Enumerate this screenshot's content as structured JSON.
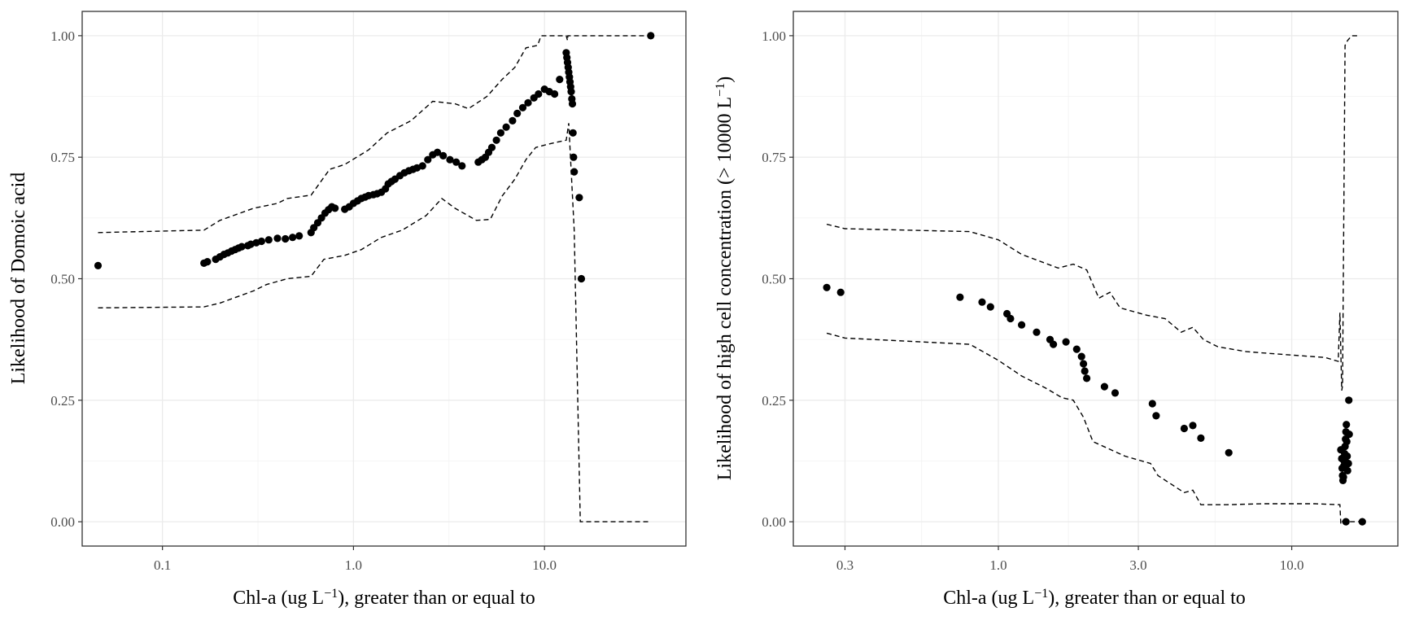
{
  "chart_data": [
    {
      "type": "scatter",
      "title": "",
      "xlabel": {
        "before": "Chl-a (ug L",
        "sup": "−1",
        "after": "), greater than or equal to"
      },
      "ylabel": {
        "before": "Likelihood of Domoic acid",
        "sup": "",
        "after": ""
      },
      "x_scale": "log10",
      "xlim": [
        0.038,
        55
      ],
      "ylim": [
        -0.05,
        1.05
      ],
      "x_ticks": [
        0.1,
        1.0,
        10.0
      ],
      "x_tick_labels": [
        "0.1",
        "1.0",
        "10.0"
      ],
      "y_ticks": [
        0,
        0.25,
        0.5,
        0.75,
        1.0
      ],
      "y_tick_labels": [
        "0.00",
        "0.25",
        "0.50",
        "0.75",
        "1.00"
      ],
      "grid": true,
      "legend": "none",
      "points": {
        "x": [
          0.046,
          0.165,
          0.172,
          0.19,
          0.2,
          0.21,
          0.22,
          0.23,
          0.24,
          0.25,
          0.26,
          0.28,
          0.29,
          0.31,
          0.33,
          0.36,
          0.4,
          0.44,
          0.48,
          0.52,
          0.6,
          0.62,
          0.65,
          0.68,
          0.71,
          0.74,
          0.77,
          0.8,
          0.9,
          0.95,
          1.0,
          1.05,
          1.1,
          1.15,
          1.2,
          1.27,
          1.33,
          1.4,
          1.47,
          1.52,
          1.58,
          1.65,
          1.75,
          1.85,
          1.95,
          2.05,
          2.15,
          2.3,
          2.45,
          2.6,
          2.75,
          2.95,
          3.2,
          3.45,
          3.7,
          4.5,
          4.7,
          4.9,
          5.1,
          5.3,
          5.6,
          5.9,
          6.3,
          6.8,
          7.2,
          7.7,
          8.2,
          8.8,
          9.3,
          10.0,
          10.6,
          11.3,
          12.0,
          13.0,
          13.1,
          13.2,
          13.3,
          13.4,
          13.5,
          13.6,
          13.7,
          13.8,
          13.9,
          14.0,
          14.1,
          14.2,
          14.3,
          15.2,
          15.6,
          36.0
        ],
        "y": [
          0.527,
          0.532,
          0.535,
          0.54,
          0.545,
          0.55,
          0.553,
          0.557,
          0.56,
          0.563,
          0.566,
          0.568,
          0.571,
          0.574,
          0.577,
          0.58,
          0.583,
          0.582,
          0.585,
          0.588,
          0.595,
          0.605,
          0.615,
          0.625,
          0.635,
          0.642,
          0.648,
          0.645,
          0.643,
          0.648,
          0.655,
          0.66,
          0.665,
          0.668,
          0.671,
          0.673,
          0.675,
          0.678,
          0.685,
          0.695,
          0.7,
          0.705,
          0.712,
          0.718,
          0.722,
          0.725,
          0.728,
          0.732,
          0.745,
          0.755,
          0.76,
          0.753,
          0.745,
          0.74,
          0.732,
          0.74,
          0.745,
          0.75,
          0.76,
          0.77,
          0.785,
          0.8,
          0.812,
          0.825,
          0.84,
          0.852,
          0.862,
          0.872,
          0.88,
          0.89,
          0.885,
          0.88,
          0.91,
          0.965,
          0.955,
          0.945,
          0.935,
          0.925,
          0.915,
          0.905,
          0.895,
          0.885,
          0.87,
          0.86,
          0.8,
          0.75,
          0.72,
          0.667,
          0.5,
          1.0
        ]
      },
      "ci_upper": {
        "x": [
          0.046,
          0.165,
          0.2,
          0.3,
          0.4,
          0.45,
          0.6,
          0.75,
          0.9,
          1.2,
          1.5,
          2.0,
          2.6,
          3.4,
          4.0,
          5.0,
          6.0,
          7.0,
          8.0,
          9.2,
          9.6,
          12.0,
          13.0,
          13.2,
          13.25,
          13.5,
          14.2,
          36.0
        ],
        "y": [
          0.595,
          0.6,
          0.62,
          0.645,
          0.655,
          0.665,
          0.672,
          0.725,
          0.735,
          0.765,
          0.8,
          0.825,
          0.865,
          0.86,
          0.85,
          0.875,
          0.91,
          0.935,
          0.975,
          0.98,
          1.0,
          1.0,
          1.0,
          0.99,
          1.0,
          1.0,
          1.0,
          1.0
        ]
      },
      "ci_lower": {
        "x": [
          0.046,
          0.165,
          0.2,
          0.3,
          0.35,
          0.45,
          0.6,
          0.7,
          0.9,
          1.1,
          1.4,
          1.8,
          2.4,
          2.9,
          3.4,
          4.4,
          5.2,
          6.0,
          7.0,
          8.0,
          9.0,
          10.0,
          11.3,
          13.0,
          13.4,
          14.3,
          15.4,
          36.0
        ],
        "y": [
          0.44,
          0.442,
          0.45,
          0.475,
          0.488,
          0.5,
          0.505,
          0.54,
          0.548,
          0.56,
          0.585,
          0.6,
          0.63,
          0.665,
          0.645,
          0.62,
          0.622,
          0.67,
          0.705,
          0.745,
          0.77,
          0.775,
          0.78,
          0.785,
          0.82,
          0.6,
          0.0,
          0.0
        ]
      }
    },
    {
      "type": "scatter",
      "title": "",
      "xlabel": {
        "before": "Chl-a (ug L",
        "sup": "−1",
        "after": "), greater than or equal to"
      },
      "ylabel": {
        "before": "Likelihood of high cell concentration (> 10000  L",
        "sup": "−1",
        "after": ")"
      },
      "x_scale": "log10",
      "xlim": [
        0.2,
        23
      ],
      "ylim": [
        -0.05,
        1.05
      ],
      "x_ticks": [
        0.3,
        1.0,
        3.0,
        10.0
      ],
      "x_tick_labels": [
        "0.3",
        "1.0",
        "3.0",
        "10.0"
      ],
      "y_ticks": [
        0,
        0.25,
        0.5,
        0.75,
        1.0
      ],
      "y_tick_labels": [
        "0.00",
        "0.25",
        "0.50",
        "0.75",
        "1.00"
      ],
      "grid": true,
      "legend": "none",
      "points": {
        "x": [
          0.26,
          0.29,
          0.74,
          0.88,
          0.94,
          1.07,
          1.1,
          1.2,
          1.35,
          1.5,
          1.54,
          1.7,
          1.85,
          1.92,
          1.95,
          1.97,
          2.0,
          2.3,
          2.5,
          3.35,
          3.45,
          4.3,
          4.6,
          4.9,
          6.1,
          14.7,
          14.8,
          14.85,
          14.9,
          14.95,
          15.0,
          15.05,
          15.1,
          15.15,
          15.2,
          15.25,
          15.3,
          15.35,
          15.4,
          15.45,
          15.5,
          15.6,
          15.65,
          15.7,
          15.3,
          17.4
        ],
        "y": [
          0.482,
          0.472,
          0.462,
          0.452,
          0.442,
          0.428,
          0.418,
          0.405,
          0.39,
          0.375,
          0.365,
          0.37,
          0.355,
          0.34,
          0.325,
          0.31,
          0.295,
          0.278,
          0.265,
          0.243,
          0.218,
          0.192,
          0.198,
          0.172,
          0.142,
          0.148,
          0.13,
          0.11,
          0.095,
          0.085,
          0.092,
          0.115,
          0.125,
          0.14,
          0.155,
          0.17,
          0.185,
          0.2,
          0.165,
          0.135,
          0.105,
          0.12,
          0.25,
          0.18,
          0.0,
          0.0
        ]
      },
      "ci_upper": {
        "x": [
          0.26,
          0.3,
          0.8,
          1.0,
          1.2,
          1.6,
          1.8,
          2.0,
          2.2,
          2.4,
          2.6,
          3.2,
          3.7,
          4.2,
          4.6,
          5.0,
          5.6,
          7.0,
          9.0,
          13.0,
          14.4,
          14.6,
          14.8,
          14.9,
          15.2,
          15.5,
          16.0,
          17.0
        ],
        "y": [
          0.612,
          0.603,
          0.597,
          0.58,
          0.55,
          0.522,
          0.53,
          0.518,
          0.46,
          0.472,
          0.44,
          0.425,
          0.418,
          0.39,
          0.4,
          0.375,
          0.36,
          0.35,
          0.345,
          0.338,
          0.33,
          0.43,
          0.27,
          0.28,
          0.98,
          0.99,
          1.0,
          1.0
        ]
      },
      "ci_lower": {
        "x": [
          0.26,
          0.3,
          0.8,
          1.0,
          1.2,
          1.45,
          1.65,
          1.8,
          1.95,
          2.1,
          2.7,
          3.3,
          3.5,
          4.3,
          4.6,
          4.9,
          6.0,
          8.0,
          12.0,
          14.6,
          14.7,
          14.8,
          15.2,
          17.0
        ],
        "y": [
          0.388,
          0.378,
          0.365,
          0.332,
          0.3,
          0.275,
          0.255,
          0.25,
          0.215,
          0.165,
          0.135,
          0.12,
          0.095,
          0.06,
          0.065,
          0.035,
          0.035,
          0.037,
          0.037,
          0.035,
          -0.005,
          0.0,
          0.0,
          0.0
        ]
      }
    }
  ]
}
